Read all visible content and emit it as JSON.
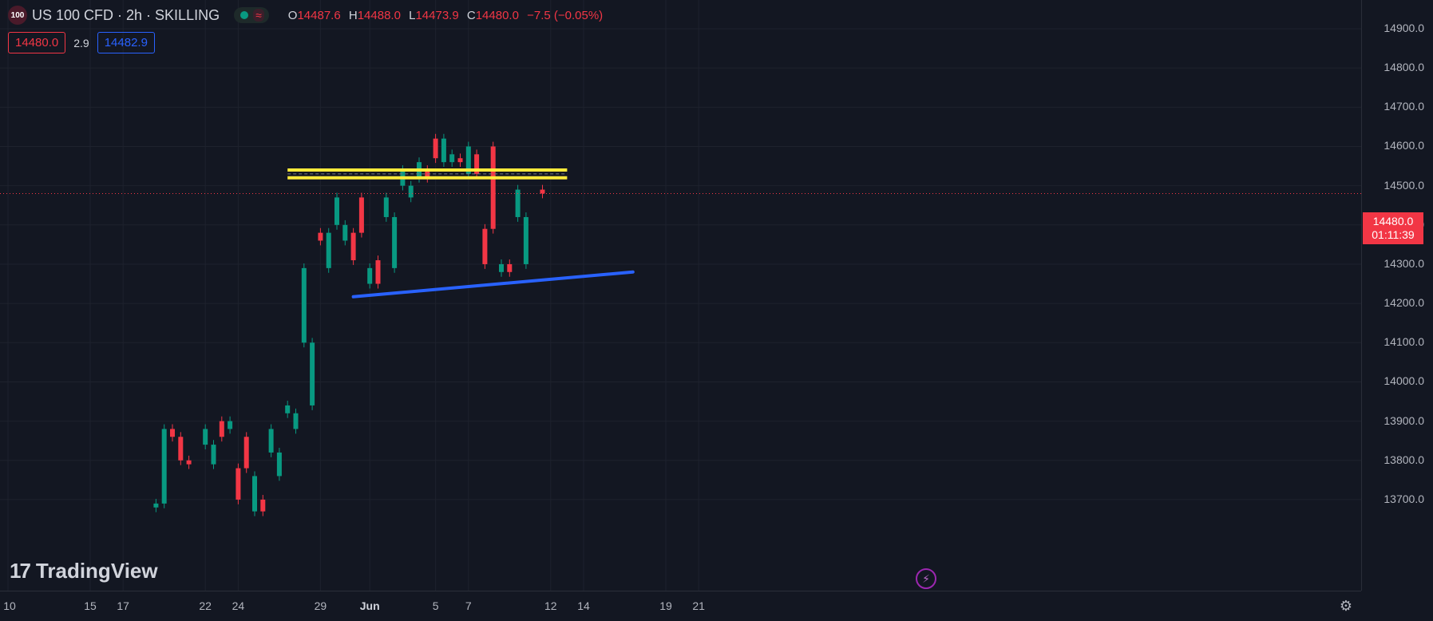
{
  "symbol": {
    "logo_text": "100",
    "title": "US 100 CFD · 2h · SKILLING",
    "status_icon": "market-open-dot-icon",
    "wave_icon": "≈"
  },
  "ohlc": {
    "open_label": "O",
    "open": "14487.6",
    "high_label": "H",
    "high": "14488.0",
    "low_label": "L",
    "low": "14473.9",
    "close_label": "C",
    "close": "14480.0",
    "change": "−7.5 (−0.05%)"
  },
  "quote": {
    "bid": "14480.0",
    "spread": "2.9",
    "ask": "14482.9"
  },
  "branding": {
    "logo_text": "TradingView",
    "logo_mark": "17"
  },
  "bolt_icon": "⚡",
  "settings_icon": "⚙",
  "price_scale": {
    "labels": [
      "14900.0",
      "14800.0",
      "14700.0",
      "14600.0",
      "14500.0",
      "14400.0",
      "14300.0",
      "14200.0",
      "14100.0",
      "14000.0",
      "13900.0",
      "13800.0",
      "13700.0"
    ],
    "current_price": "14480.0",
    "countdown": "01:11:39"
  },
  "time_scale": {
    "labels": [
      "10",
      "15",
      "17",
      "22",
      "24",
      "29",
      "Jun",
      "5",
      "7",
      "12",
      "14",
      "19",
      "21"
    ],
    "bold_label": "Jun"
  },
  "colors": {
    "background": "#131722",
    "up": "#089981",
    "down": "#f23645",
    "resistance": "#ffeb3b",
    "support": "#2962ff"
  },
  "chart_data": {
    "type": "candlestick",
    "title": "",
    "xlabel": "",
    "ylabel": "",
    "ylim": [
      13650,
      14950
    ],
    "x_ticks": [
      "10",
      "15",
      "17",
      "22",
      "24",
      "29",
      "Jun",
      "5",
      "7",
      "12",
      "14",
      "19",
      "21"
    ],
    "close_points": [
      {
        "x": "May 19",
        "y": 13690
      },
      {
        "x": "May 19",
        "y": 13880
      },
      {
        "x": "May 20",
        "y": 13860
      },
      {
        "x": "May 20",
        "y": 13800
      },
      {
        "x": "May 21",
        "y": 13790
      },
      {
        "x": "May 22",
        "y": 13840
      },
      {
        "x": "May 22",
        "y": 13880
      },
      {
        "x": "May 23",
        "y": 13900
      },
      {
        "x": "May 23",
        "y": 13860
      },
      {
        "x": "May 24",
        "y": 13780
      },
      {
        "x": "May 24",
        "y": 13700
      },
      {
        "x": "May 25",
        "y": 13670
      },
      {
        "x": "May 25",
        "y": 13760
      },
      {
        "x": "May 26",
        "y": 13820
      },
      {
        "x": "May 26",
        "y": 13880
      },
      {
        "x": "May 27",
        "y": 13920
      },
      {
        "x": "May 27",
        "y": 13940
      },
      {
        "x": "May 28",
        "y": 14100
      },
      {
        "x": "May 28",
        "y": 14290
      },
      {
        "x": "May 29",
        "y": 14380
      },
      {
        "x": "May 29",
        "y": 14360
      },
      {
        "x": "May 30",
        "y": 14400
      },
      {
        "x": "May 30",
        "y": 14470
      },
      {
        "x": "May 31",
        "y": 14380
      },
      {
        "x": "May 31",
        "y": 14310
      },
      {
        "x": "Jun 1",
        "y": 14250
      },
      {
        "x": "Jun 1",
        "y": 14290
      },
      {
        "x": "Jun 2",
        "y": 14420
      },
      {
        "x": "Jun 2",
        "y": 14470
      },
      {
        "x": "Jun 3",
        "y": 14500
      },
      {
        "x": "Jun 3",
        "y": 14540
      },
      {
        "x": "Jun 4",
        "y": 14520
      },
      {
        "x": "Jun 4",
        "y": 14560
      },
      {
        "x": "Jun 5",
        "y": 14620
      },
      {
        "x": "Jun 5",
        "y": 14570
      },
      {
        "x": "Jun 6",
        "y": 14560
      },
      {
        "x": "Jun 6",
        "y": 14580
      },
      {
        "x": "Jun 7",
        "y": 14530
      },
      {
        "x": "Jun 7",
        "y": 14600
      },
      {
        "x": "Jun 8",
        "y": 14390
      },
      {
        "x": "Jun 8",
        "y": 14300
      },
      {
        "x": "Jun 9",
        "y": 14280
      },
      {
        "x": "Jun 9",
        "y": 14300
      },
      {
        "x": "Jun 10",
        "y": 14420
      },
      {
        "x": "Jun 10",
        "y": 14490
      },
      {
        "x": "Jun 11",
        "y": 14480
      }
    ],
    "resistance_zone": {
      "x_start": "May 27",
      "x_end": "Jun 13",
      "y_low": 14520,
      "y_high": 14540
    },
    "support_line": {
      "x_start": "May 31",
      "y_start": 14217,
      "x_end": "Jun 17",
      "y_end": 14280
    },
    "current_price": 14480
  }
}
